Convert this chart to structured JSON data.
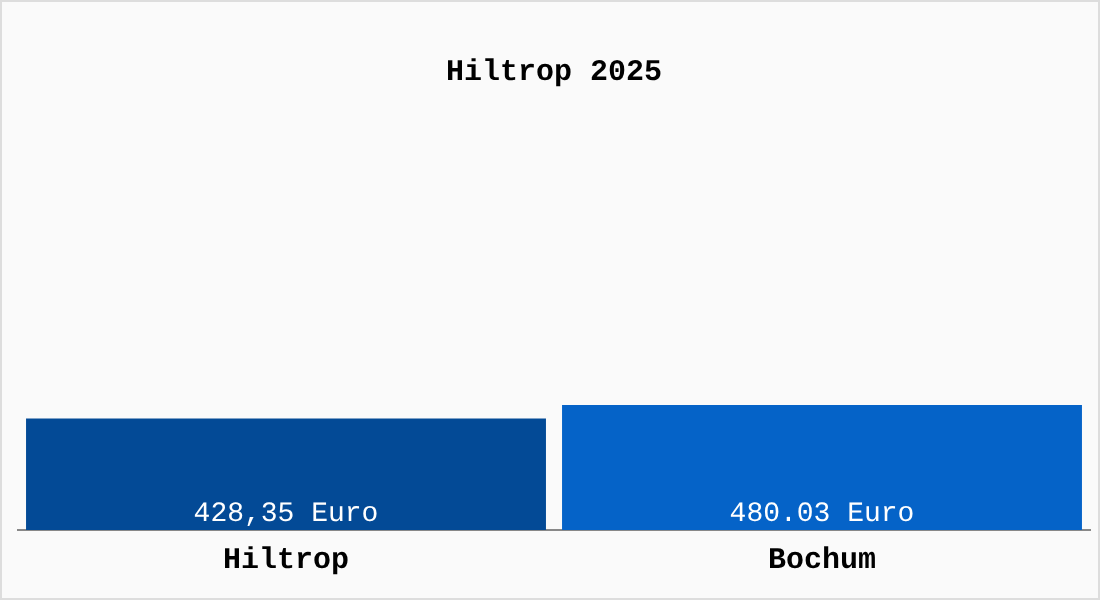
{
  "chart_data": {
    "type": "bar",
    "title": "Hiltrop 2025",
    "categories": [
      "Hiltrop",
      "Bochum"
    ],
    "values": [
      428.35,
      480.03
    ],
    "colors": [
      "#034a96",
      "#0563c8"
    ],
    "value_labels": [
      "428,35 Euro",
      "480.03 Euro"
    ],
    "grid": false,
    "legend": false
  }
}
